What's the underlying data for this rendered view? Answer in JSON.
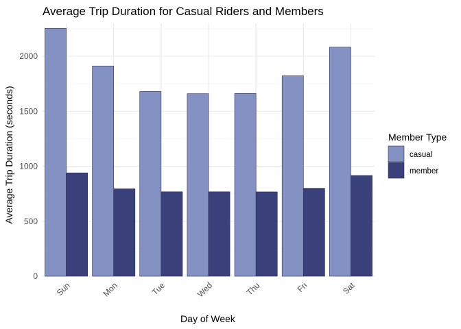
{
  "chart_data": {
    "type": "bar",
    "title": "Average Trip Duration for Casual Riders and Members",
    "xlabel": "Day of Week",
    "ylabel": "Average Trip Duration (seconds)",
    "categories": [
      "Sun",
      "Mon",
      "Tue",
      "Wed",
      "Thu",
      "Fri",
      "Sat"
    ],
    "series": [
      {
        "name": "casual",
        "color": "#8491c3",
        "values": [
          2255,
          1912,
          1680,
          1660,
          1662,
          1822,
          2083
        ]
      },
      {
        "name": "member",
        "color": "#3a407a",
        "values": [
          940,
          795,
          768,
          768,
          767,
          800,
          916
        ]
      }
    ],
    "ylim": [
      0,
      2300
    ],
    "yticks": [
      0,
      500,
      1000,
      1500,
      2000
    ],
    "grid": true,
    "legend": {
      "title": "Member Type",
      "position": "right"
    }
  }
}
